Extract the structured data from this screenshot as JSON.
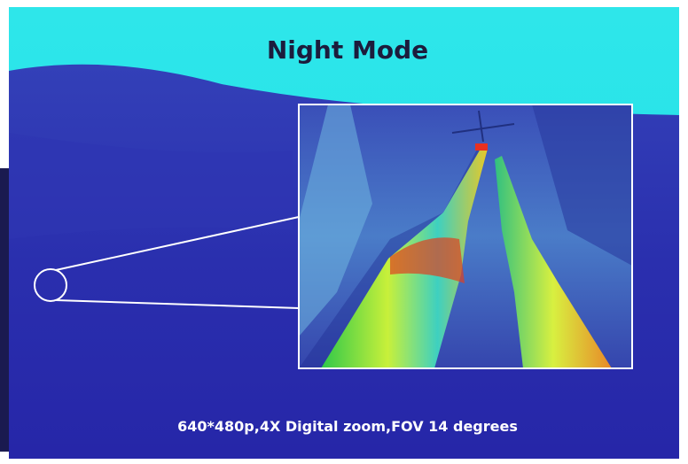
{
  "header": {
    "title": "Night Mode"
  },
  "caption": {
    "text": "640*480p,4X Digital zoom,FOV 14 degrees"
  }
}
